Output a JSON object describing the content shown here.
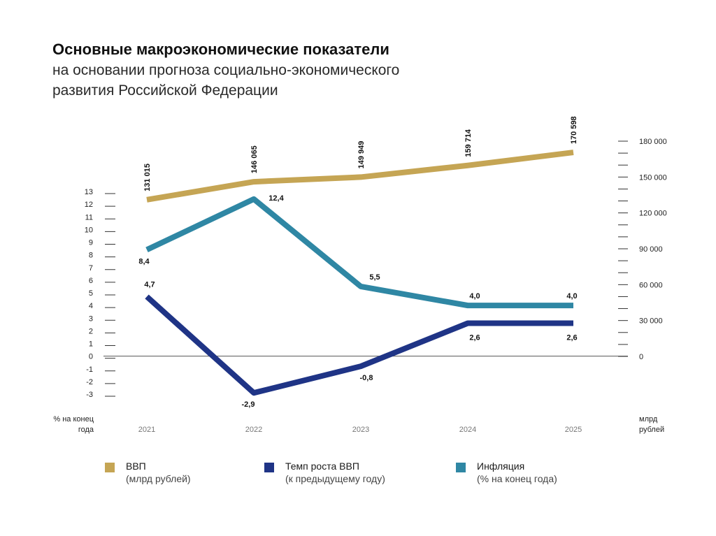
{
  "title": "Основные макроэкономические показатели",
  "subtitle": "на основании прогноза социально-экономического\nразвития Российской Федерации",
  "colors": {
    "gdp": "#c5a554",
    "growth": "#1f3486",
    "inflation": "#2f87a4",
    "tick": "#333333",
    "zero_line": "#555555",
    "year_label": "#777777"
  },
  "chart_data": {
    "type": "line",
    "title": "Основные макроэкономические показатели",
    "x": [
      "2021",
      "2022",
      "2023",
      "2024",
      "2025"
    ],
    "left_axis": {
      "unit_label_line1": "% на конец",
      "unit_label_line2": "года",
      "ticks": [
        "13",
        "12",
        "11",
        "10",
        "9",
        "8",
        "7",
        "6",
        "5",
        "4",
        "3",
        "2",
        "1",
        "0",
        "-1",
        "-2",
        "-3"
      ],
      "ylim": [
        -3,
        13
      ]
    },
    "right_axis": {
      "unit_label_line1": "млрд",
      "unit_label_line2": "рублей",
      "ticks": [
        "180 000",
        "150 000",
        "120 000",
        "90 000",
        "60 000",
        "30 000",
        "0"
      ],
      "ylim": [
        0,
        180000
      ]
    },
    "series": [
      {
        "name": "ВВП",
        "axis": "right",
        "values": [
          131015,
          146065,
          149949,
          159714,
          170598
        ],
        "labels": [
          "131 015",
          "146 065",
          "149 949",
          "159 714",
          "170 598"
        ]
      },
      {
        "name": "Темп роста ВВП",
        "axis": "left",
        "values": [
          4.7,
          -2.9,
          -0.8,
          2.6,
          2.6
        ],
        "labels": [
          "4,7",
          "-2,9",
          "-0,8",
          "2,6",
          "2,6"
        ]
      },
      {
        "name": "Инфляция",
        "axis": "left",
        "values": [
          8.4,
          12.4,
          5.5,
          4.0,
          4.0
        ],
        "labels": [
          "8,4",
          "12,4",
          "5,5",
          "4,0",
          "4,0"
        ]
      }
    ]
  },
  "legend": [
    {
      "name": "ВВП",
      "note": "(млрд рублей)",
      "color_key": "gdp"
    },
    {
      "name": "Темп роста ВВП",
      "note": "(к предыдущему году)",
      "color_key": "growth"
    },
    {
      "name": "Инфляция",
      "note": "(% на конец года)",
      "color_key": "inflation"
    }
  ]
}
